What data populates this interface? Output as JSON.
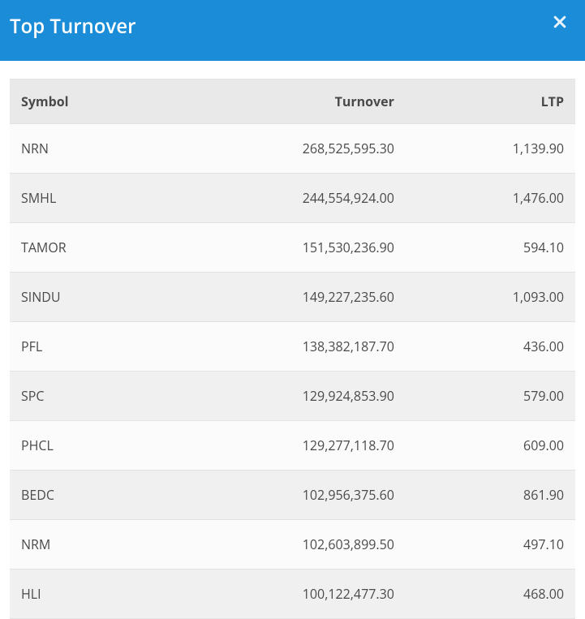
{
  "header": {
    "title": "Top Turnover"
  },
  "table": {
    "columns": [
      {
        "key": "symbol",
        "label": "Symbol",
        "align": "left",
        "width": "33%"
      },
      {
        "key": "turnover",
        "label": "Turnover",
        "align": "right",
        "width": "37%"
      },
      {
        "key": "ltp",
        "label": "LTP",
        "align": "right",
        "width": "30%"
      }
    ],
    "rows": [
      {
        "symbol": "NRN",
        "turnover": "268,525,595.30",
        "ltp": "1,139.90"
      },
      {
        "symbol": "SMHL",
        "turnover": "244,554,924.00",
        "ltp": "1,476.00"
      },
      {
        "symbol": "TAMOR",
        "turnover": "151,530,236.90",
        "ltp": "594.10"
      },
      {
        "symbol": "SINDU",
        "turnover": "149,227,235.60",
        "ltp": "1,093.00"
      },
      {
        "symbol": "PFL",
        "turnover": "138,382,187.70",
        "ltp": "436.00"
      },
      {
        "symbol": "SPC",
        "turnover": "129,924,853.90",
        "ltp": "579.00"
      },
      {
        "symbol": "PHCL",
        "turnover": "129,277,118.70",
        "ltp": "609.00"
      },
      {
        "symbol": "BEDC",
        "turnover": "102,956,375.60",
        "ltp": "861.90"
      },
      {
        "symbol": "NRM",
        "turnover": "102,603,899.50",
        "ltp": "497.10"
      },
      {
        "symbol": "HLI",
        "turnover": "100,122,477.30",
        "ltp": "468.00"
      }
    ],
    "row_stripe_colors": [
      "#fbfbfb",
      "#f0f0f0"
    ],
    "header_bg": "#e9e9e9",
    "border_color": "#e2e2e2",
    "text_color": "#4a4a4a",
    "font_size": 16,
    "cell_padding_v": 19,
    "cell_padding_h": 14
  },
  "colors": {
    "header_bg": "#1a8cd8",
    "header_text": "#ffffff",
    "page_bg": "#ffffff"
  }
}
